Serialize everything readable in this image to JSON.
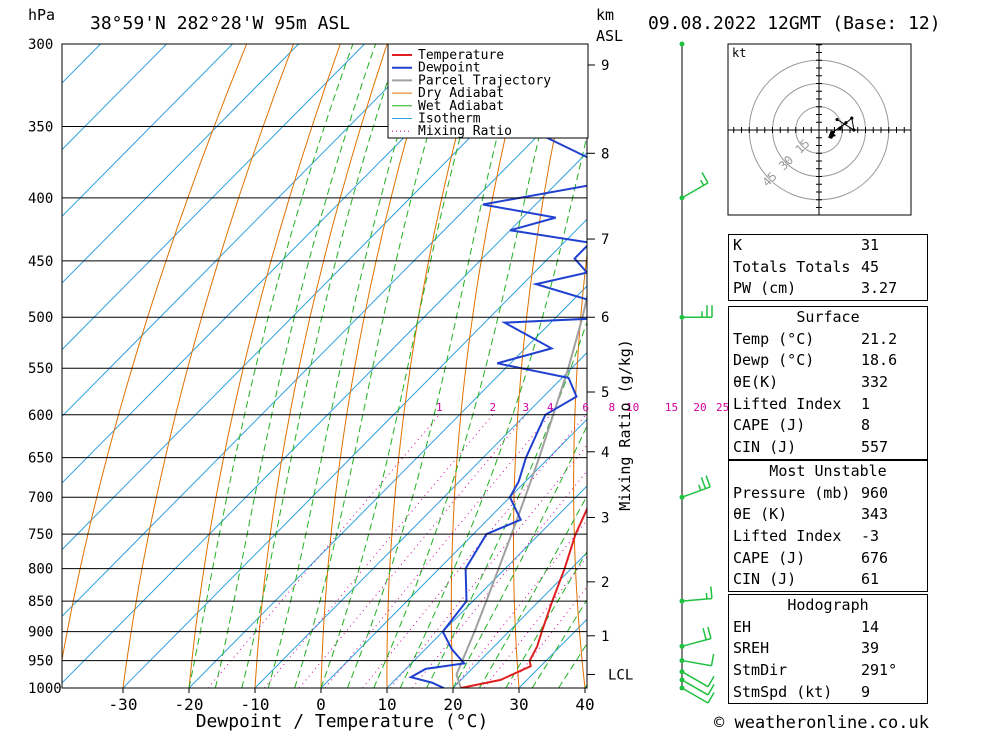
{
  "header": {
    "units_left": "hPa",
    "location": "38°59'N  282°28'W  95m  ASL",
    "units_right_1": "km",
    "units_right_2": "ASL",
    "datetime": "09.08.2022  12GMT  (Base: 12)"
  },
  "footer": {
    "credit": "© weatheronline.co.uk"
  },
  "chart_data": {
    "type": "skewt",
    "xlabel": "Dewpoint / Temperature (°C)",
    "ylabel_right": "Mixing Ratio (g/kg)",
    "x_ticks": [
      "-30",
      "-20",
      "-10",
      "0",
      "10",
      "20",
      "30",
      "40"
    ],
    "pressure_levels": [
      300,
      350,
      400,
      450,
      500,
      550,
      600,
      650,
      700,
      750,
      800,
      850,
      900,
      950,
      1000
    ],
    "height_ticks_km": [
      "9",
      "8",
      "7",
      "6",
      "5",
      "4",
      "3",
      "2",
      "1"
    ],
    "height_tick_pressures": [
      312,
      368,
      432,
      500,
      575,
      643,
      727,
      820,
      907
    ],
    "lcl_label": "LCL",
    "lcl_pressure": 975,
    "mixing_ratio_labels": [
      "1",
      "2",
      "3",
      "4",
      "6",
      "8",
      "10",
      "15",
      "20",
      "25"
    ],
    "legend": [
      "Temperature",
      "Dewpoint",
      "Parcel Trajectory",
      "Dry Adiabat",
      "Wet Adiabat",
      "Isotherm",
      "Mixing Ratio"
    ],
    "colors": {
      "temperature": "#e02020",
      "dewpoint": "#2040d0",
      "parcel": "#a0a0a0",
      "dry_adiabat": "#e07000",
      "wet_adiabat": "#20b020",
      "isotherm": "#30a0e0",
      "mixing_ratio": "#d000a0",
      "wind": "#20c040"
    },
    "temperature_profile": [
      {
        "p": 1000,
        "t": 21.2
      },
      {
        "p": 985,
        "t": 26
      },
      {
        "p": 970,
        "t": 27.5
      },
      {
        "p": 960,
        "t": 28.5
      },
      {
        "p": 950,
        "t": 27.5
      },
      {
        "p": 925,
        "t": 26.5
      },
      {
        "p": 900,
        "t": 25
      },
      {
        "p": 850,
        "t": 22
      },
      {
        "p": 800,
        "t": 19
      },
      {
        "p": 750,
        "t": 15.5
      },
      {
        "p": 700,
        "t": 12.5
      },
      {
        "p": 650,
        "t": 8.5
      },
      {
        "p": 600,
        "t": 4.5
      },
      {
        "p": 550,
        "t": 1
      },
      {
        "p": 500,
        "t": -4
      },
      {
        "p": 475,
        "t": -7.5
      },
      {
        "p": 450,
        "t": -10
      },
      {
        "p": 425,
        "t": -13
      },
      {
        "p": 400,
        "t": -16
      },
      {
        "p": 375,
        "t": -20
      },
      {
        "p": 350,
        "t": -25
      },
      {
        "p": 325,
        "t": -30
      },
      {
        "p": 300,
        "t": -35
      }
    ],
    "dewpoint_profile": [
      {
        "p": 1000,
        "t": 18.6
      },
      {
        "p": 990,
        "t": 16
      },
      {
        "p": 980,
        "t": 12
      },
      {
        "p": 965,
        "t": 13
      },
      {
        "p": 955,
        "t": 18
      },
      {
        "p": 930,
        "t": 14
      },
      {
        "p": 900,
        "t": 10
      },
      {
        "p": 850,
        "t": 9
      },
      {
        "p": 800,
        "t": 4
      },
      {
        "p": 750,
        "t": 2
      },
      {
        "p": 730,
        "t": 5
      },
      {
        "p": 700,
        "t": 0
      },
      {
        "p": 680,
        "t": -1
      },
      {
        "p": 650,
        "t": -3.5
      },
      {
        "p": 600,
        "t": -7
      },
      {
        "p": 580,
        "t": -5
      },
      {
        "p": 560,
        "t": -9
      },
      {
        "p": 545,
        "t": -22
      },
      {
        "p": 530,
        "t": -16
      },
      {
        "p": 505,
        "t": -27
      },
      {
        "p": 500,
        "t": -10
      },
      {
        "p": 485,
        "t": -17
      },
      {
        "p": 470,
        "t": -28
      },
      {
        "p": 460,
        "t": -22
      },
      {
        "p": 448,
        "t": -26
      },
      {
        "p": 435,
        "t": -26
      },
      {
        "p": 425,
        "t": -40
      },
      {
        "p": 415,
        "t": -35
      },
      {
        "p": 405,
        "t": -48
      },
      {
        "p": 390,
        "t": -34
      },
      {
        "p": 385,
        "t": -30
      },
      {
        "p": 355,
        "t": -50
      },
      {
        "p": 320,
        "t": -44
      },
      {
        "p": 310,
        "t": -38
      },
      {
        "p": 300,
        "t": -60
      }
    ],
    "parcel_profile": [
      {
        "p": 1000,
        "t": 21.2
      },
      {
        "p": 975,
        "t": 18.5
      },
      {
        "p": 950,
        "t": 17.3
      },
      {
        "p": 900,
        "t": 14.8
      },
      {
        "p": 850,
        "t": 12
      },
      {
        "p": 800,
        "t": 9
      },
      {
        "p": 750,
        "t": 5.8
      },
      {
        "p": 700,
        "t": 2.3
      },
      {
        "p": 650,
        "t": -1.5
      },
      {
        "p": 600,
        "t": -5.8
      },
      {
        "p": 550,
        "t": -10.5
      },
      {
        "p": 500,
        "t": -16
      },
      {
        "p": 450,
        "t": -22.5
      },
      {
        "p": 400,
        "t": -30
      },
      {
        "p": 350,
        "t": -39
      },
      {
        "p": 310,
        "t": -47
      }
    ],
    "wind_barbs": [
      {
        "p": 1000,
        "dir": 300,
        "spd": 10
      },
      {
        "p": 985,
        "dir": 300,
        "spd": 10
      },
      {
        "p": 970,
        "dir": 300,
        "spd": 10
      },
      {
        "p": 950,
        "dir": 280,
        "spd": 10
      },
      {
        "p": 925,
        "dir": 255,
        "spd": 20
      },
      {
        "p": 850,
        "dir": 265,
        "spd": 15
      },
      {
        "p": 700,
        "dir": 250,
        "spd": 25
      },
      {
        "p": 500,
        "dir": 270,
        "spd": 25
      },
      {
        "p": 400,
        "dir": 240,
        "spd": 15
      }
    ],
    "hodograph": {
      "unit_label": "kt",
      "ring_labels": [
        "15",
        "30",
        "45"
      ],
      "ring_speeds": [
        15,
        30,
        45
      ]
    }
  },
  "indices": {
    "general": [
      {
        "label": "K",
        "value": "31"
      },
      {
        "label": "Totals Totals",
        "value": "45"
      },
      {
        "label": "PW (cm)",
        "value": "3.27"
      }
    ],
    "surface_title": "Surface",
    "surface": [
      {
        "label": "Temp (°C)",
        "value": "21.2"
      },
      {
        "label": "Dewp (°C)",
        "value": "18.6"
      },
      {
        "label": "θE(K)",
        "value": "332"
      },
      {
        "label": "Lifted Index",
        "value": "1"
      },
      {
        "label": "CAPE (J)",
        "value": "8"
      },
      {
        "label": "CIN (J)",
        "value": "557"
      }
    ],
    "mu_title": "Most Unstable",
    "mu": [
      {
        "label": "Pressure (mb)",
        "value": "960"
      },
      {
        "label": "θE (K)",
        "value": "343"
      },
      {
        "label": "Lifted Index",
        "value": "-3"
      },
      {
        "label": "CAPE (J)",
        "value": "676"
      },
      {
        "label": "CIN (J)",
        "value": "61"
      }
    ],
    "hodo_title": "Hodograph",
    "hodo": [
      {
        "label": "EH",
        "value": "14"
      },
      {
        "label": "SREH",
        "value": "39"
      },
      {
        "label": "StmDir",
        "value": "291°"
      },
      {
        "label": "StmSpd (kt)",
        "value": "9"
      }
    ]
  }
}
